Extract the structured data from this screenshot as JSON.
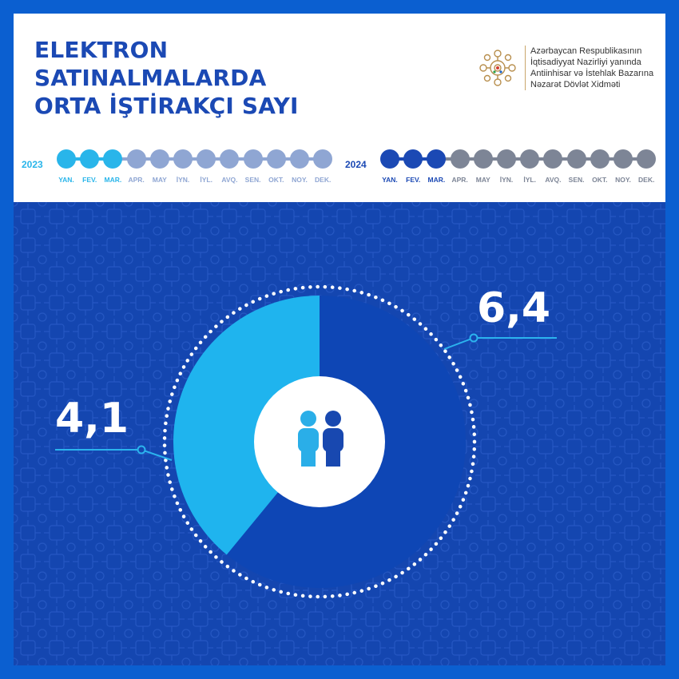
{
  "title_lines": [
    "ELEKTRON",
    "SATINALMALARDA",
    "ORTA İŞTİRAKÇI SAYI"
  ],
  "org_lines": [
    "Azərbaycan Respublikasının",
    "İqtisadiyyat Nazirliyi yanında",
    "Antiinhisar və İstehlak Bazarına",
    "Nəzarət Dövlət Xidməti"
  ],
  "timeline": {
    "months": [
      "YAN.",
      "FEV.",
      "MAR.",
      "APR.",
      "MAY",
      "İYN.",
      "İYL.",
      "AVQ.",
      "SEN.",
      "OKT.",
      "NOY.",
      "DEK."
    ],
    "year_2023": {
      "label": "2023",
      "active_months": 3,
      "active_color": "#29b5ea",
      "inactive_color": "#8fa6d3"
    },
    "year_2024": {
      "label": "2024",
      "active_months": 3,
      "active_color": "#1b49b4",
      "inactive_color": "#7d8596"
    }
  },
  "chart_data": {
    "type": "pie",
    "series": [
      {
        "name": "2023",
        "value": 4.1,
        "label": "4,1",
        "color": "#1fb4ee"
      },
      {
        "name": "2024",
        "value": 6.4,
        "label": "6,4",
        "color": "#0e46b5"
      }
    ],
    "center_icon": "people-icon"
  },
  "colors": {
    "background": "#0b5fd0",
    "panel": "#1446b0",
    "title": "#1b49b4"
  }
}
